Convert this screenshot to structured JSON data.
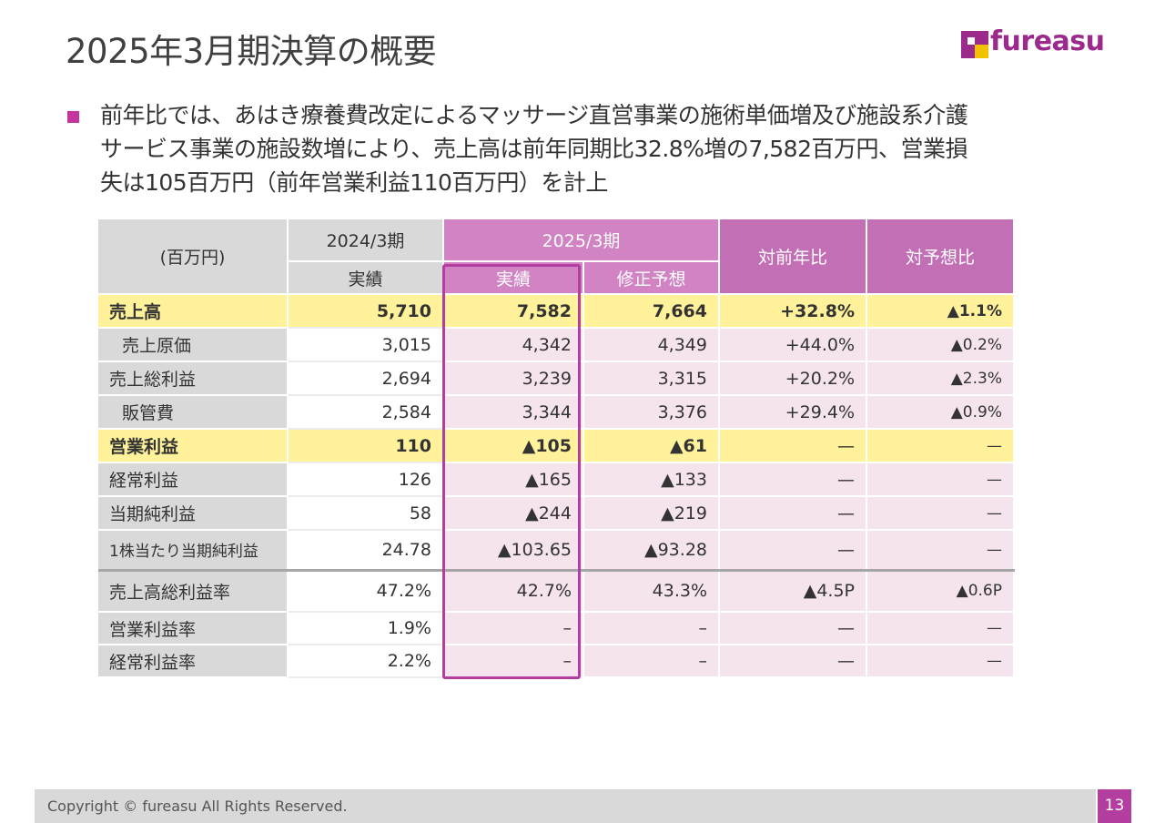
{
  "title": "2025年3月期決算の概要",
  "logo": {
    "text": "fureasu",
    "color": "#9c2a8c",
    "accent": "#f2c200"
  },
  "bullet": {
    "lines": [
      "前年比では、あはき療養費改定によるマッサージ直営事業の施術単価増及び施設系介護",
      "サービス事業の施設数増により、売上高は前年同期比32.8%増の7,582百万円、営業損",
      "失は105百万円（前年営業利益110百万円）を計上"
    ]
  },
  "table": {
    "unit_label": "(百万円)",
    "col_2024": "2024/3期",
    "col_2025": "2025/3期",
    "col_yoy": "対前年比",
    "col_vs_forecast": "対予想比",
    "sub_actual_2024": "実績",
    "sub_actual_2025": "実績",
    "sub_forecast": "修正予想",
    "rows": [
      {
        "label": "売上高",
        "v2024": "5,710",
        "v2025": "7,582",
        "forecast": "7,664",
        "yoy": "+32.8%",
        "vs": "▲1.1%"
      },
      {
        "label": "売上原価",
        "v2024": "3,015",
        "v2025": "4,342",
        "forecast": "4,349",
        "yoy": "+44.0%",
        "vs": "▲0.2%"
      },
      {
        "label": "売上総利益",
        "v2024": "2,694",
        "v2025": "3,239",
        "forecast": "3,315",
        "yoy": "+20.2%",
        "vs": "▲2.3%"
      },
      {
        "label": "販管費",
        "v2024": "2,584",
        "v2025": "3,344",
        "forecast": "3,376",
        "yoy": "+29.4%",
        "vs": "▲0.9%"
      },
      {
        "label": "営業利益",
        "v2024": "110",
        "v2025": "▲105",
        "forecast": "▲61",
        "yoy": "—",
        "vs": "—"
      },
      {
        "label": "経常利益",
        "v2024": "126",
        "v2025": "▲165",
        "forecast": "▲133",
        "yoy": "—",
        "vs": "—"
      },
      {
        "label": "当期純利益",
        "v2024": "58",
        "v2025": "▲244",
        "forecast": "▲219",
        "yoy": "—",
        "vs": "—"
      },
      {
        "label": "1株当たり当期純利益",
        "v2024": "24.78",
        "v2025": "▲103.65",
        "forecast": "▲93.28",
        "yoy": "—",
        "vs": "—"
      },
      {
        "label": "売上高総利益率",
        "v2024": "47.2%",
        "v2025": "42.7%",
        "forecast": "43.3%",
        "yoy": "▲4.5P",
        "vs": "▲0.6P"
      },
      {
        "label": "営業利益率",
        "v2024": "1.9%",
        "v2025": "–",
        "forecast": "–",
        "yoy": "—",
        "vs": "—"
      },
      {
        "label": "経常利益率",
        "v2024": "2.2%",
        "v2025": "–",
        "forecast": "–",
        "yoy": "—",
        "vs": "—"
      }
    ]
  },
  "footer": {
    "copyright": "Copyright © fureasu All Rights Reserved.",
    "page_number": "13"
  },
  "colors": {
    "accent": "#b43e9f",
    "header_pink": "#d183c4",
    "cell_pink": "#f5e4ee",
    "highlight_yellow": "#fff29a",
    "gray": "#d9d9d9"
  }
}
